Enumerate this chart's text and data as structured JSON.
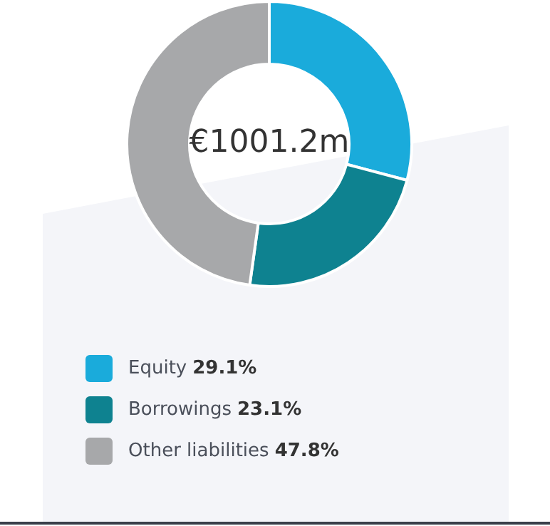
{
  "chart_data": {
    "type": "donut",
    "categories": [
      "Equity",
      "Borrowings",
      "Other liabilities"
    ],
    "values": [
      29.1,
      23.1,
      47.8
    ],
    "colors": [
      "#1aabdb",
      "#0e8290",
      "#a7a8aa"
    ],
    "value_labels": [
      "29.1%",
      "23.1%",
      "47.8%"
    ],
    "annotations": [
      "€1001.2m"
    ],
    "legend": "bottom"
  }
}
